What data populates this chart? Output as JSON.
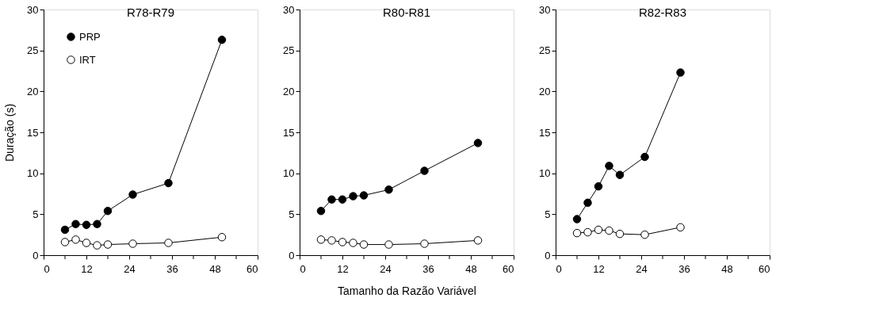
{
  "chart_data": [
    {
      "type": "line",
      "title": "R78-R79",
      "ylabel": "Duração (s)",
      "xlim": [
        0,
        60
      ],
      "ylim": [
        0,
        30
      ],
      "xticks": [
        0,
        {
          "value": 6,
          "label": null
        },
        12,
        {
          "value": 18,
          "label": null
        },
        24,
        {
          "value": 30,
          "label": null
        },
        36,
        {
          "value": 42,
          "label": null
        },
        48,
        {
          "value": 54,
          "label": null
        },
        60
      ],
      "yticks": [
        0,
        5,
        10,
        15,
        20,
        25,
        30
      ],
      "grid": false,
      "legend": "top left",
      "marker": "circle",
      "line_style": "solid",
      "series": [
        {
          "name": "PRP",
          "color": "#000000",
          "x": [
            6,
            9,
            12,
            15,
            18,
            25,
            35,
            50
          ],
          "values": [
            3.1,
            3.8,
            3.7,
            3.8,
            5.4,
            7.4,
            8.8,
            26.3
          ]
        },
        {
          "name": "IRT",
          "color": "#ffffff",
          "x": [
            6,
            9,
            12,
            15,
            18,
            25,
            35,
            50
          ],
          "values": [
            1.6,
            1.9,
            1.5,
            1.2,
            1.3,
            1.4,
            1.5,
            2.2
          ]
        }
      ]
    },
    {
      "type": "line",
      "title": "R80-R81",
      "xlabel": "Tamanho da Razão Variável",
      "xlim": [
        0,
        60
      ],
      "ylim": [
        0,
        30
      ],
      "xticks": [
        0,
        {
          "value": 6,
          "label": null
        },
        12,
        {
          "value": 18,
          "label": null
        },
        24,
        {
          "value": 30,
          "label": null
        },
        36,
        {
          "value": 42,
          "label": null
        },
        48,
        {
          "value": 54,
          "label": null
        },
        60
      ],
      "yticks": [
        0,
        5,
        10,
        15,
        20,
        25,
        30
      ],
      "grid": false,
      "marker": "circle",
      "line_style": "solid",
      "series": [
        {
          "color": "#000000",
          "x": [
            6,
            9,
            12,
            15,
            18,
            25,
            35,
            50
          ],
          "values": [
            5.4,
            6.8,
            6.8,
            7.2,
            7.3,
            8.0,
            10.3,
            13.7
          ]
        },
        {
          "color": "#ffffff",
          "x": [
            6,
            9,
            12,
            15,
            18,
            25,
            35,
            50
          ],
          "values": [
            1.9,
            1.8,
            1.6,
            1.5,
            1.3,
            1.3,
            1.4,
            1.8
          ]
        }
      ]
    },
    {
      "type": "line",
      "title": "R82-R83",
      "xlim": [
        0,
        60
      ],
      "ylim": [
        0,
        30
      ],
      "xticks": [
        0,
        {
          "value": 6,
          "label": null
        },
        12,
        {
          "value": 18,
          "label": null
        },
        24,
        {
          "value": 30,
          "label": null
        },
        36,
        {
          "value": 42,
          "label": null
        },
        48,
        {
          "value": 54,
          "label": null
        },
        60
      ],
      "yticks": [
        0,
        5,
        10,
        15,
        20,
        25,
        30
      ],
      "grid": false,
      "marker": "circle",
      "line_style": "solid",
      "series": [
        {
          "color": "#000000",
          "x": [
            6,
            9,
            12,
            15,
            18,
            25,
            35
          ],
          "values": [
            4.4,
            6.4,
            8.4,
            10.9,
            9.8,
            12.0,
            22.3
          ]
        },
        {
          "color": "#ffffff",
          "x": [
            6,
            9,
            12,
            15,
            18,
            25,
            35
          ],
          "values": [
            2.7,
            2.8,
            3.1,
            3.0,
            2.6,
            2.5,
            3.4
          ]
        }
      ]
    }
  ]
}
